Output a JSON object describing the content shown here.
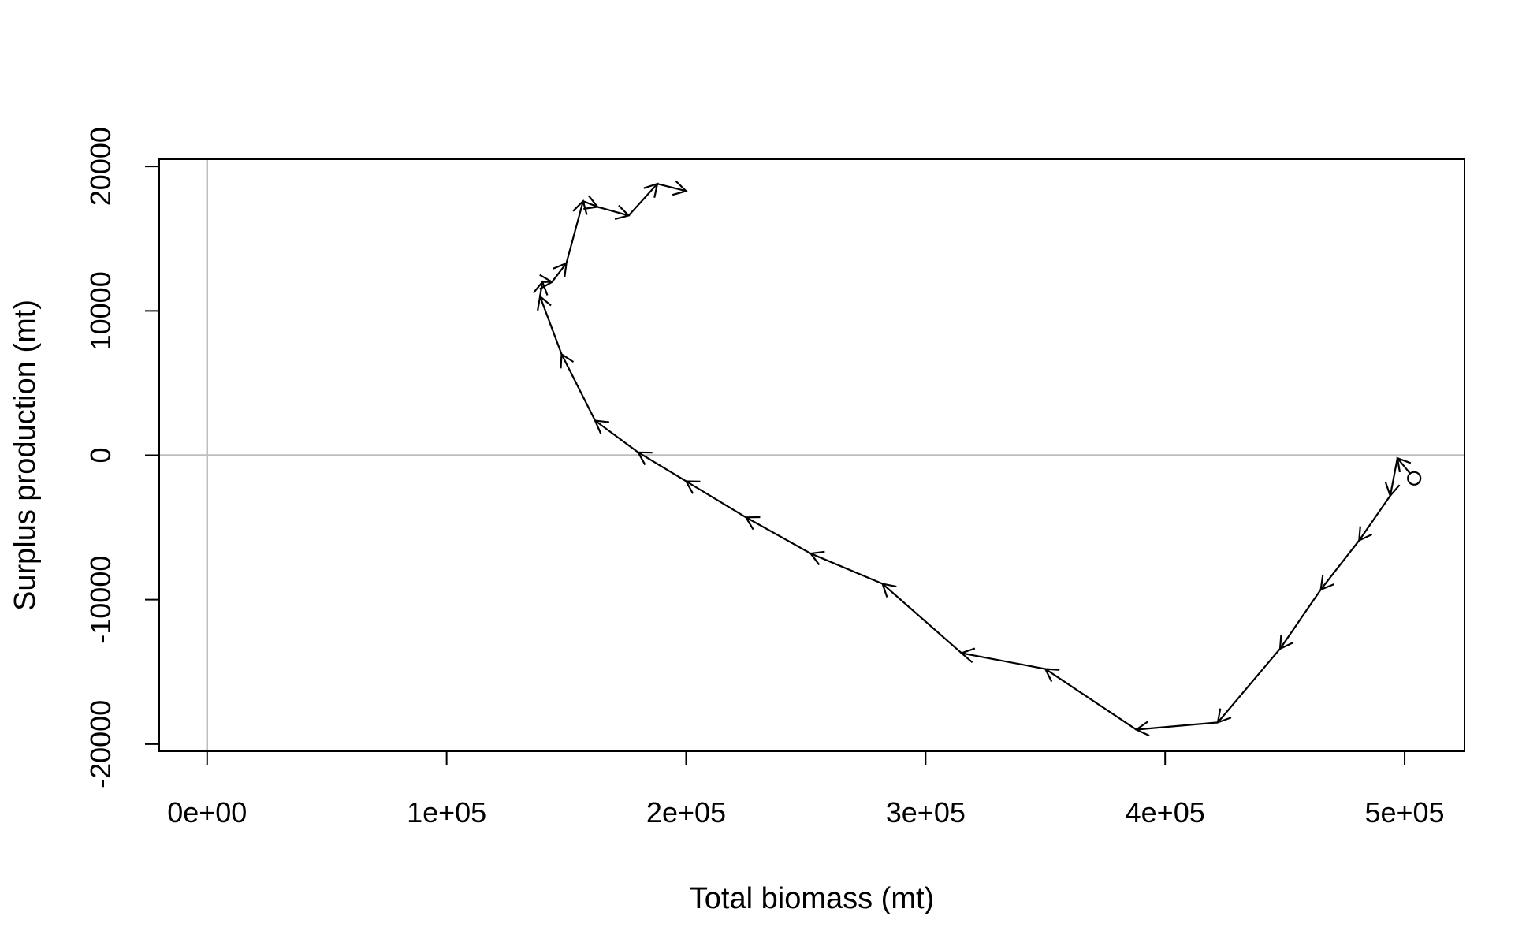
{
  "chart_data": {
    "type": "line",
    "title": "",
    "xlabel": "Total biomass (mt)",
    "ylabel": "Surplus production (mt)",
    "xlim": [
      -20000,
      525000
    ],
    "ylim": [
      -20500,
      20500
    ],
    "x_ticks": [
      0,
      100000,
      200000,
      300000,
      400000,
      500000
    ],
    "x_tick_labels": [
      "0e+00",
      "1e+05",
      "2e+05",
      "3e+05",
      "4e+05",
      "5e+05"
    ],
    "y_ticks": [
      -20000,
      -10000,
      0,
      10000,
      20000
    ],
    "y_tick_labels": [
      "-20000",
      "-10000",
      "0",
      "10000",
      "20000"
    ],
    "reference_lines": {
      "x": 0,
      "y": 0,
      "color": "#bebebe"
    },
    "grid": false,
    "line_color": "#000000",
    "arrows": true,
    "start_marker": "open-circle",
    "series": [
      {
        "x": [
          504000,
          497000,
          494000,
          481000,
          465000,
          448000,
          422000,
          388000,
          350000,
          315000,
          282000,
          252000,
          225000,
          200000,
          180000,
          162000,
          148000,
          139000,
          140000,
          144000,
          150000,
          157000,
          163000,
          176000,
          188000,
          200000
        ],
        "y": [
          -1600,
          -200,
          -2800,
          -5900,
          -9300,
          -13400,
          -18500,
          -19000,
          -14800,
          -13700,
          -8900,
          -6800,
          -4300,
          -1800,
          200,
          2400,
          7000,
          11000,
          12000,
          12000,
          13300,
          17600,
          17200,
          16600,
          18800,
          18300
        ]
      }
    ]
  }
}
